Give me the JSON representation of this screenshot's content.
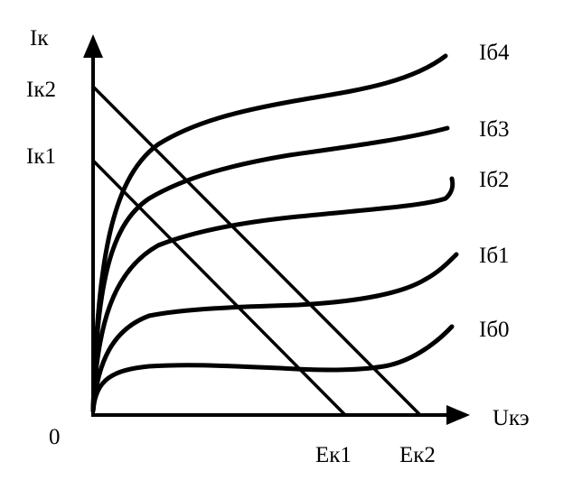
{
  "labels": {
    "y_axis": "Iк",
    "x_axis": "Uкэ",
    "origin": "0",
    "ik2": "Iк2",
    "ik1": "Iк1",
    "ek1": "Eк1",
    "ek2": "Eк2"
  },
  "curves": [
    {
      "label": "Iб4"
    },
    {
      "label": "Iб3"
    },
    {
      "label": "Iб2"
    },
    {
      "label": "Iб1"
    },
    {
      "label": "Iб0"
    }
  ]
}
